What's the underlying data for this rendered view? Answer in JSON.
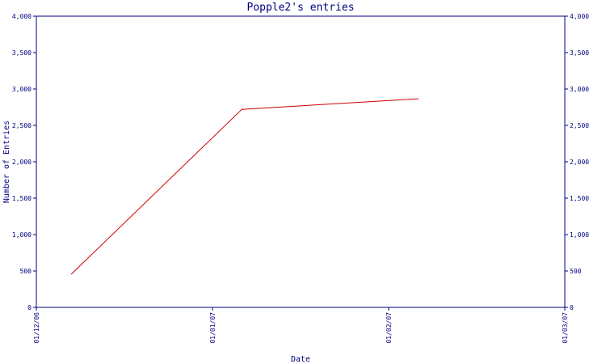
{
  "chart_data": {
    "type": "line",
    "title": "Popple2's entries",
    "xlabel": "Date",
    "ylabel": "Number of Entries",
    "x_ticks": [
      "01/12/06",
      "01/01/07",
      "01/02/07",
      "01/03/07"
    ],
    "y_ticks": [
      "0",
      "500",
      "1,000",
      "1,500",
      "2,000",
      "2,500",
      "3,000",
      "3,500",
      "4,000"
    ],
    "ylim": [
      0,
      4000
    ],
    "xlim": [
      "2006-12-01",
      "2007-03-01"
    ],
    "series": [
      {
        "x": [
          "2006-12-07",
          "2007-01-05",
          "2007-02-04"
        ],
        "values": [
          460,
          2720,
          2865
        ]
      }
    ],
    "grid": false,
    "colors": {
      "axis": "#000080",
      "text": "#000080",
      "title": "#000080",
      "line": "#cc0000"
    }
  }
}
